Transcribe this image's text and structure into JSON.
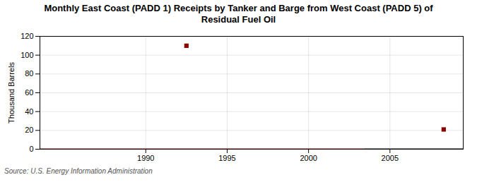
{
  "chart_data": {
    "type": "line",
    "title": "Monthly East Coast (PADD 1) Receipts by Tanker and Barge from West Coast (PADD 5) of\nResidual Fuel Oil",
    "ylabel": "Thousand Barrels",
    "source": "Source: U.S. Energy Information Administration",
    "series": [
      {
        "type": "line",
        "color": "#8B0000",
        "x": [
          1983.5,
          2003.5
        ],
        "values": [
          0,
          0
        ]
      },
      {
        "type": "line",
        "color": "black",
        "x": [
          2003.5,
          2009.5
        ],
        "values": [
          0,
          0
        ]
      },
      {
        "type": "scatter",
        "marker": "square",
        "color": "#8B0000",
        "x": [
          1992.5,
          2008.3
        ],
        "values": [
          110,
          21
        ]
      }
    ],
    "xlim": [
      1983.5,
      2009.5
    ],
    "xticks": [
      1990,
      1995,
      2000,
      2005
    ],
    "ylim": [
      0,
      120
    ],
    "yticks": [
      0,
      20,
      40,
      60,
      80,
      100,
      120
    ],
    "grid": true
  }
}
